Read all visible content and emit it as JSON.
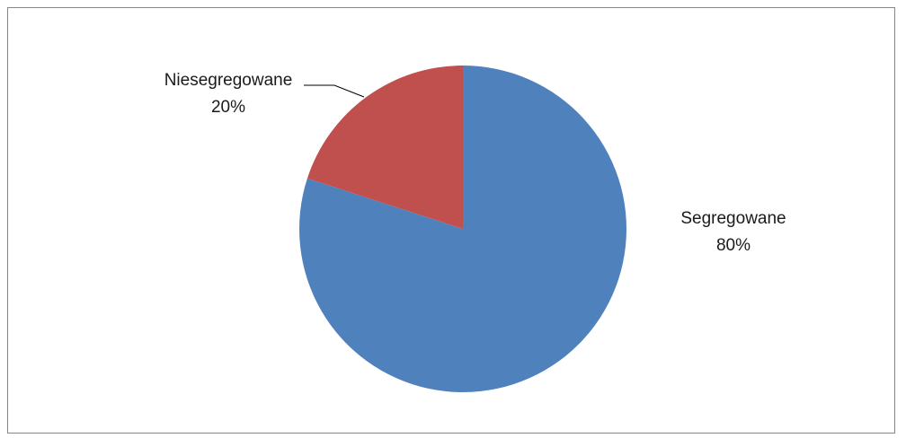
{
  "chart_data": {
    "type": "pie",
    "title": "",
    "slices": [
      {
        "category": "Segregowane",
        "value": 80,
        "label": "80%",
        "color": "#4f81bd"
      },
      {
        "category": "Niesegregowane",
        "value": 20,
        "label": "20%",
        "color": "#c0504d"
      }
    ],
    "legend": "none",
    "data_labels": "category and percentage, outside end; leader line on Niesegregowane"
  }
}
